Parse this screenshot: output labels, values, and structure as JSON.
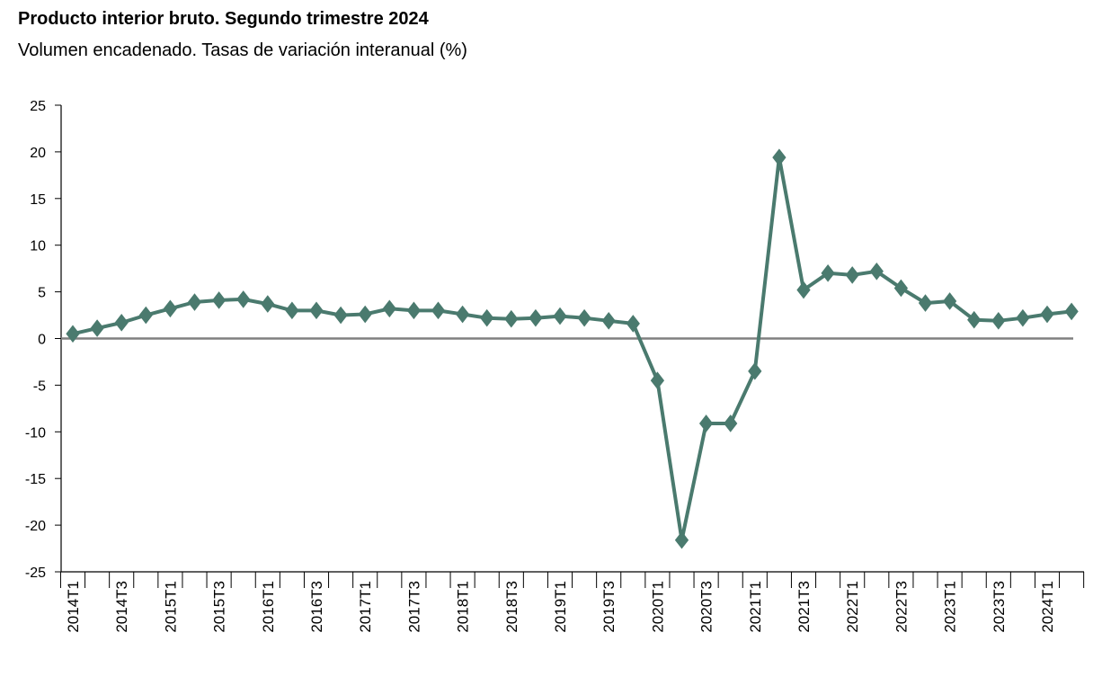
{
  "chart_data": {
    "type": "line",
    "title": "Producto interior bruto. Segundo trimestre 2024",
    "subtitle": "Volumen encadenado. Tasas de variación interanual (%)",
    "xlabel": "",
    "ylabel": "",
    "ylim": [
      -25,
      25
    ],
    "yticks": [
      25,
      20,
      15,
      10,
      5,
      0,
      -5,
      -10,
      -15,
      -20,
      -25
    ],
    "x": [
      "2014T1",
      "2014T2",
      "2014T3",
      "2014T4",
      "2015T1",
      "2015T2",
      "2015T3",
      "2015T4",
      "2016T1",
      "2016T2",
      "2016T3",
      "2016T4",
      "2017T1",
      "2017T2",
      "2017T3",
      "2017T4",
      "2018T1",
      "2018T2",
      "2018T3",
      "2018T4",
      "2019T1",
      "2019T2",
      "2019T3",
      "2019T4",
      "2020T1",
      "2020T2",
      "2020T3",
      "2020T4",
      "2021T1",
      "2021T2",
      "2021T3",
      "2021T4",
      "2022T1",
      "2022T2",
      "2022T3",
      "2022T4",
      "2023T1",
      "2023T2",
      "2023T3",
      "2023T4",
      "2024T1",
      "2024T2"
    ],
    "xtick_labels": [
      "2014T1",
      "2014T3",
      "2015T1",
      "2015T3",
      "2016T1",
      "2016T3",
      "2017T1",
      "2017T3",
      "2018T1",
      "2018T3",
      "2019T1",
      "2019T3",
      "2020T1",
      "2020T3",
      "2021T1",
      "2021T3",
      "2022T1",
      "2022T3",
      "2023T1",
      "2023T3",
      "2024T1"
    ],
    "series": [
      {
        "color": "#4a7a6e",
        "marker": "diamond",
        "values": [
          0.5,
          1.1,
          1.7,
          2.5,
          3.2,
          3.9,
          4.1,
          4.2,
          3.7,
          3.0,
          3.0,
          2.5,
          2.6,
          3.2,
          3.0,
          3.0,
          2.6,
          2.2,
          2.1,
          2.2,
          2.4,
          2.2,
          1.9,
          1.6,
          -4.5,
          -21.6,
          -9.1,
          -9.1,
          -3.5,
          19.4,
          5.2,
          7.0,
          6.8,
          7.2,
          5.4,
          3.8,
          4.0,
          2.0,
          1.9,
          2.2,
          2.6,
          2.9
        ]
      }
    ],
    "grid": false,
    "zero_line_color": "#808080",
    "axis_color": "#000000"
  }
}
